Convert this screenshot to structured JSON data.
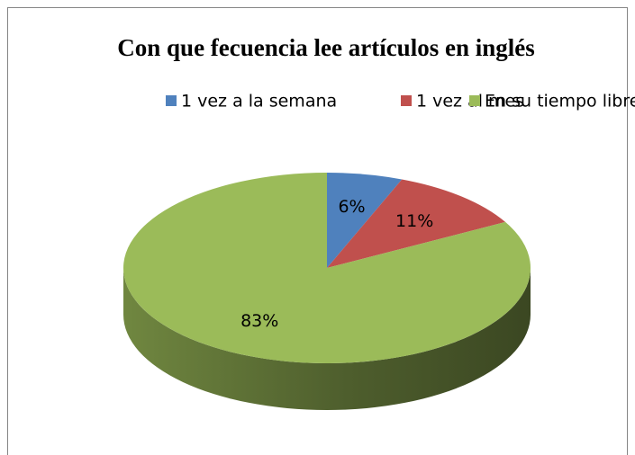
{
  "chart_data": {
    "type": "pie",
    "title": "Con que fecuencia lee artículos en inglés",
    "categories": [
      "1 vez a la semana",
      "1 vez al mes",
      "En su tiempo libre"
    ],
    "values": [
      6,
      11,
      83
    ],
    "value_labels": [
      "6%",
      "11%",
      "83%"
    ],
    "colors": [
      "#4f81bd",
      "#c0504d",
      "#9bbb59"
    ],
    "legend": "top"
  }
}
